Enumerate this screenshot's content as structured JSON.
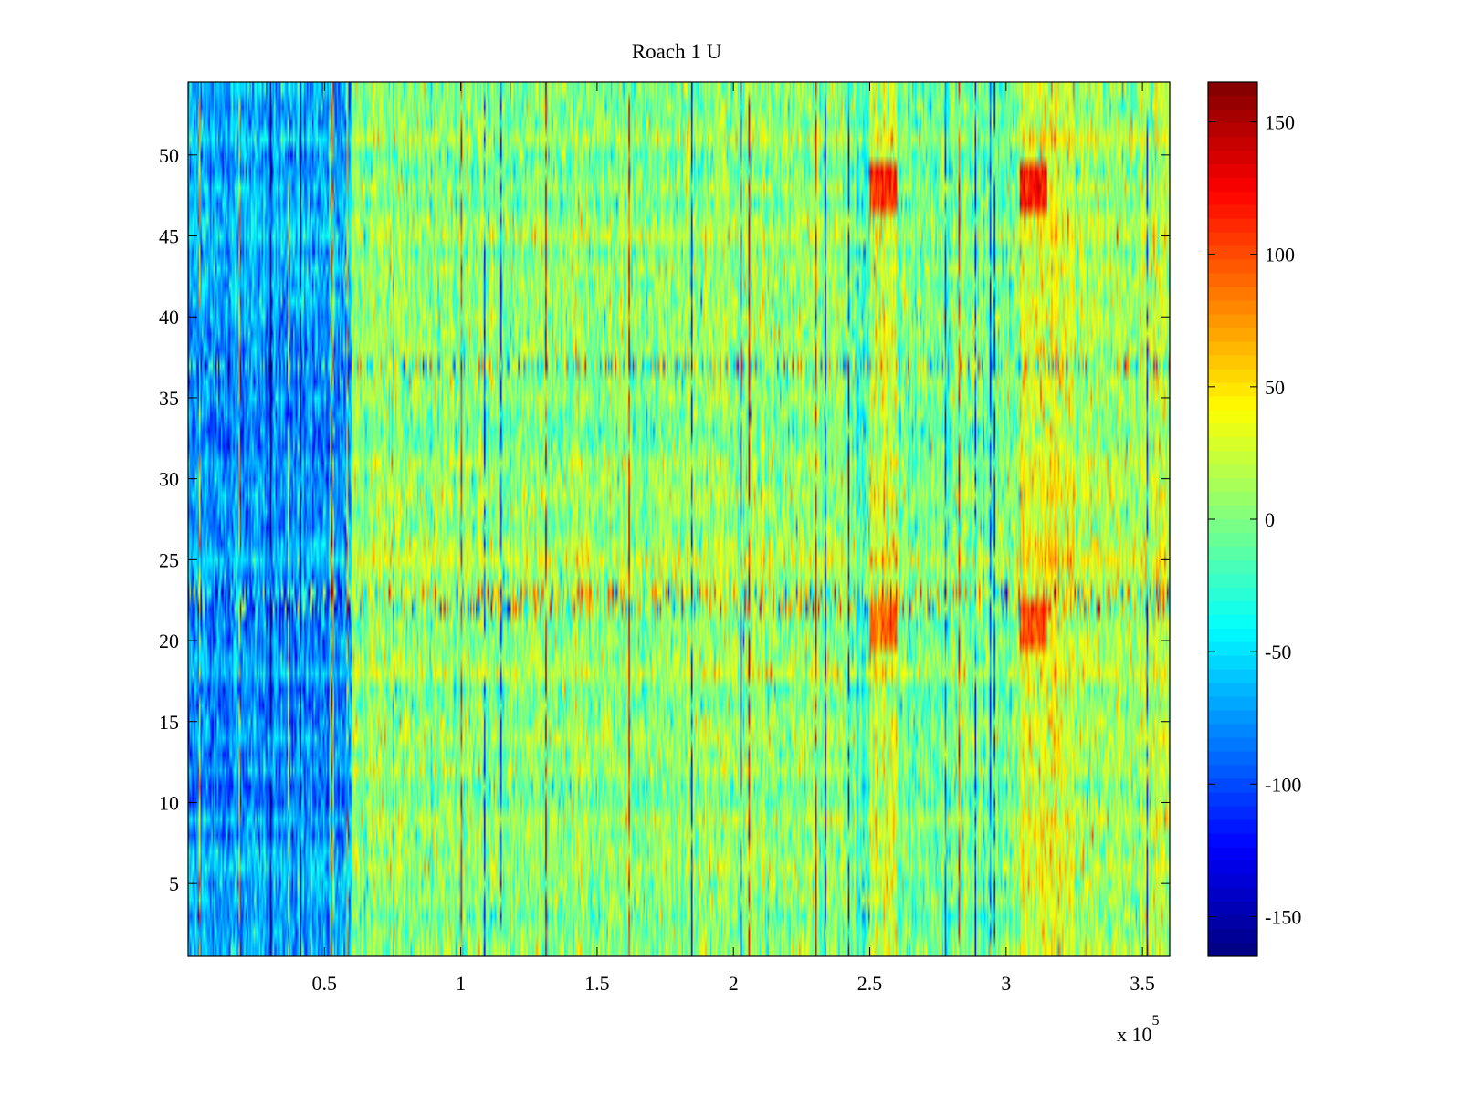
{
  "chart_data": {
    "type": "heatmap",
    "title": "Roach 1 U",
    "xlabel": "",
    "ylabel": "",
    "x_multiplier_label": "x 10",
    "x_multiplier_exponent": "5",
    "xlim": [
      0,
      360000
    ],
    "ylim": [
      0.5,
      54.5
    ],
    "rows": 54,
    "columns": 720,
    "x_ticks": [
      {
        "value": 0.5,
        "label": "0.5"
      },
      {
        "value": 1,
        "label": "1"
      },
      {
        "value": 1.5,
        "label": "1.5"
      },
      {
        "value": 2,
        "label": "2"
      },
      {
        "value": 2.5,
        "label": "2.5"
      },
      {
        "value": 3,
        "label": "3"
      },
      {
        "value": 3.5,
        "label": "3.5"
      }
    ],
    "y_ticks": [
      {
        "value": 5,
        "label": "5"
      },
      {
        "value": 10,
        "label": "10"
      },
      {
        "value": 15,
        "label": "15"
      },
      {
        "value": 20,
        "label": "20"
      },
      {
        "value": 25,
        "label": "25"
      },
      {
        "value": 30,
        "label": "30"
      },
      {
        "value": 35,
        "label": "35"
      },
      {
        "value": 40,
        "label": "40"
      },
      {
        "value": 45,
        "label": "45"
      },
      {
        "value": 50,
        "label": "50"
      }
    ],
    "colorbar": {
      "colormap": "jet",
      "clim": [
        -165,
        165
      ],
      "ticks": [
        {
          "value": 150,
          "label": "150"
        },
        {
          "value": 100,
          "label": "100"
        },
        {
          "value": 50,
          "label": "50"
        },
        {
          "value": 0,
          "label": "0"
        },
        {
          "value": -50,
          "label": "-50"
        },
        {
          "value": -100,
          "label": "-100"
        },
        {
          "value": -150,
          "label": "-150"
        }
      ]
    },
    "value_description": "Mean level per x-region (x in units of 10^5); noisy per-row values around these means",
    "region_means": [
      {
        "x_from": 0,
        "x_to": 0.6,
        "value": -65
      },
      {
        "x_from": 0.6,
        "x_to": 2.45,
        "value": 5
      },
      {
        "x_from": 2.45,
        "x_to": 2.5,
        "value": -20
      },
      {
        "x_from": 2.5,
        "x_to": 2.6,
        "value": 25
      },
      {
        "x_from": 2.6,
        "x_to": 3.05,
        "value": -5
      },
      {
        "x_from": 3.05,
        "x_to": 3.25,
        "value": 30
      },
      {
        "x_from": 3.25,
        "x_to": 3.6,
        "value": 15
      }
    ],
    "hot_spots": [
      {
        "x": 2.55,
        "row": 48,
        "value": 110
      },
      {
        "x": 3.1,
        "row": 48,
        "value": 120
      },
      {
        "x": 3.1,
        "row": 21,
        "value": 100
      },
      {
        "x": 2.55,
        "row": 21,
        "value": 90
      }
    ],
    "high_variance_rows": [
      22,
      23,
      37
    ]
  }
}
